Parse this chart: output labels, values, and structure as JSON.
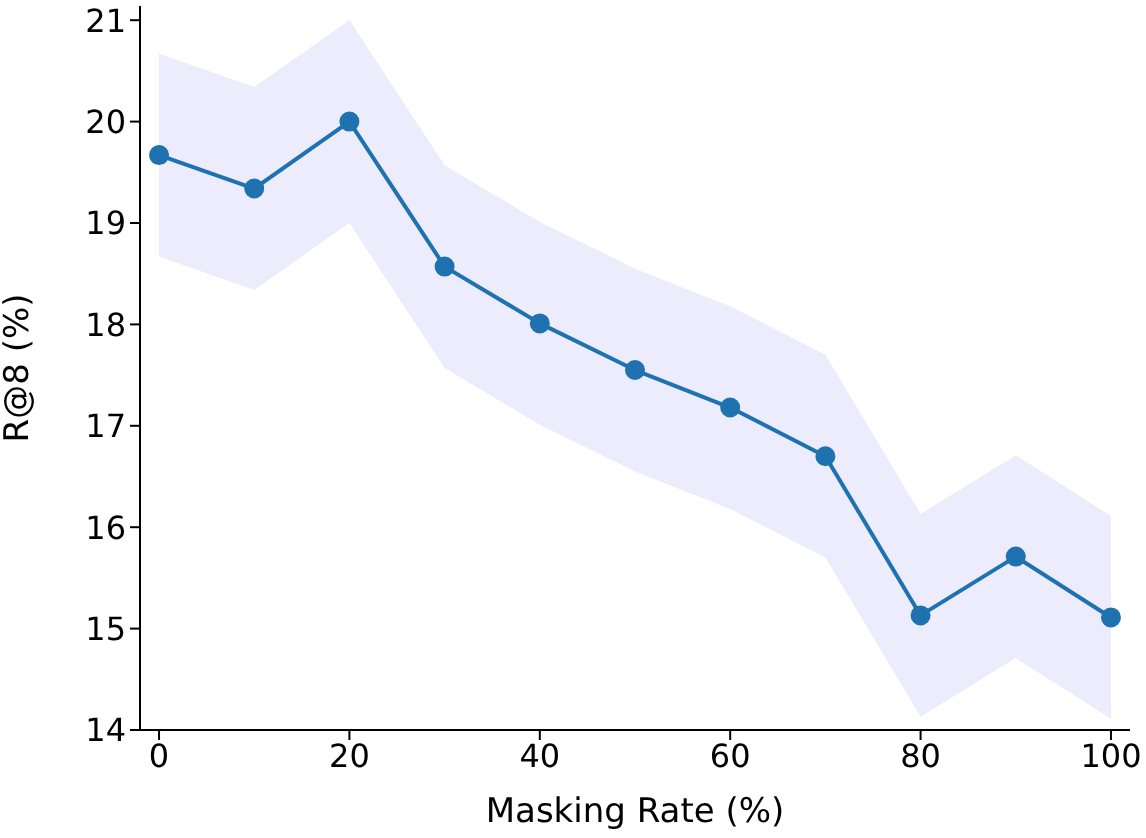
{
  "chart_data": {
    "type": "line",
    "xlabel": "Masking Rate (%)",
    "ylabel": "R@8 (%)",
    "x": [
      0,
      10,
      20,
      30,
      40,
      50,
      60,
      70,
      80,
      90,
      100
    ],
    "series": [
      {
        "color": "#1f72b0",
        "values": [
          19.67,
          19.34,
          20.0,
          18.57,
          18.01,
          17.55,
          17.18,
          16.7,
          15.13,
          15.71,
          15.11
        ],
        "lower": [
          18.67,
          18.34,
          19.0,
          17.57,
          17.01,
          16.55,
          16.18,
          15.7,
          14.13,
          14.71,
          14.11
        ],
        "upper": [
          20.67,
          20.34,
          21.0,
          19.57,
          19.01,
          18.55,
          18.18,
          17.7,
          16.13,
          16.71,
          16.11
        ]
      }
    ],
    "xlim": [
      -2,
      102
    ],
    "xticks": [
      0,
      20,
      40,
      60,
      80,
      100
    ],
    "ylim": [
      14,
      21.14
    ],
    "yticks": [
      14,
      15,
      16,
      17,
      18,
      19,
      20,
      21
    ],
    "grid": false,
    "legend": false,
    "marker": "circle",
    "line_style": "solid"
  }
}
